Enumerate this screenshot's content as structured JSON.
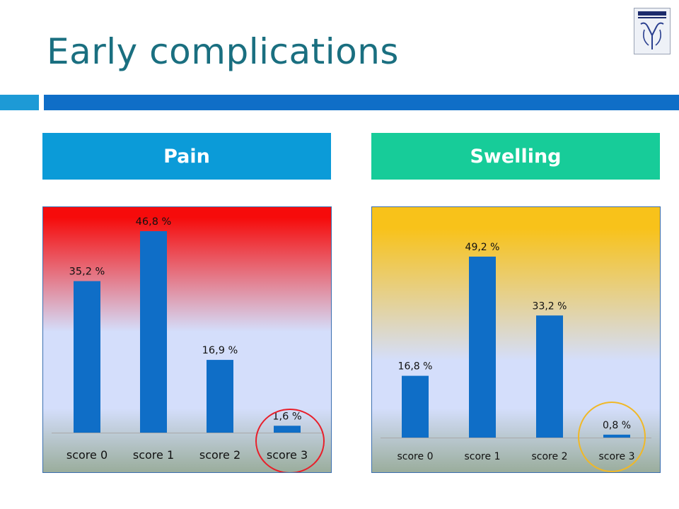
{
  "slide": {
    "title": "Early complications",
    "panels": [
      {
        "header": "Pain",
        "header_color": "#0b9bd8"
      },
      {
        "header": "Swelling",
        "header_color": "#17cc99"
      }
    ]
  },
  "colors": {
    "bar": "#0f6ec7",
    "rule_light": "#1d9ad6",
    "rule_dark": "#0f6ec7",
    "pain_gradient_top": "#f60b0b",
    "swelling_gradient_top": "#f8c21a",
    "panel_mid": "#d4defb",
    "panel_bottom": "#9aad9c",
    "pain_highlight": "#e81f2a",
    "swelling_highlight": "#f0b827"
  },
  "chart_data": [
    {
      "type": "bar",
      "categories": [
        "score 0",
        "score 1",
        "score 2",
        "score 3"
      ],
      "values": [
        35.2,
        46.8,
        16.9,
        1.6
      ],
      "data_labels": [
        "35,2 %",
        "46,8 %",
        "16,9 %",
        "1,6 %"
      ],
      "ylim": [
        0,
        46.8
      ],
      "highlighted_category": "score 3"
    },
    {
      "type": "bar",
      "categories": [
        "score 0",
        "score 1",
        "score 2",
        "score 3"
      ],
      "values": [
        16.8,
        49.2,
        33.2,
        0.8
      ],
      "data_labels": [
        "16,8 %",
        "49,2 %",
        "33,2 %",
        "0,8 %"
      ],
      "ylim": [
        0,
        49.2
      ],
      "highlighted_category": "score 3"
    }
  ]
}
